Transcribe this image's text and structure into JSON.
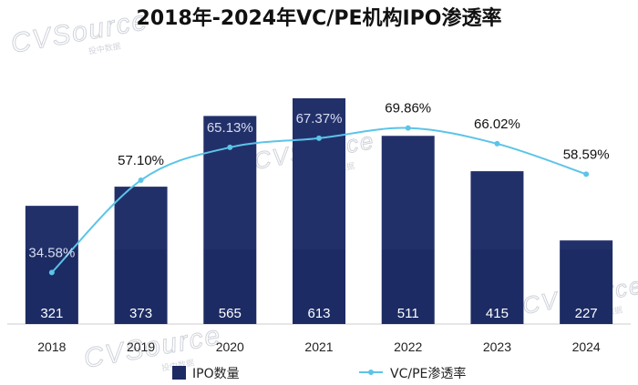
{
  "chart_data": {
    "type": "bar+line",
    "title": "2018年-2024年VC/PE机构IPO渗透率",
    "categories": [
      "2018",
      "2019",
      "2020",
      "2021",
      "2022",
      "2023",
      "2024"
    ],
    "series": [
      {
        "name": "IPO数量",
        "type": "bar",
        "values": [
          321,
          373,
          565,
          613,
          511,
          415,
          227
        ]
      },
      {
        "name": "VC/PE渗透率",
        "type": "line",
        "unit": "%",
        "values": [
          34.58,
          57.1,
          65.13,
          67.37,
          69.86,
          66.02,
          58.59
        ],
        "labels": [
          "34.58%",
          "57.10%",
          "65.13%",
          "67.37%",
          "69.86%",
          "66.02%",
          "58.59%"
        ]
      }
    ],
    "bar_ylim": [
      0,
      640
    ],
    "line_ylim": [
      0,
      100
    ],
    "legend_position": "bottom"
  },
  "watermark": {
    "brand": "CVSource",
    "sub": "投中数据"
  },
  "colors": {
    "bar_dark": "#1c2b63",
    "bar_light": "#22306a",
    "line": "#5bc4e8",
    "pct_label_outside": "#111111",
    "pct_label_inside": "#d8dcf0"
  }
}
